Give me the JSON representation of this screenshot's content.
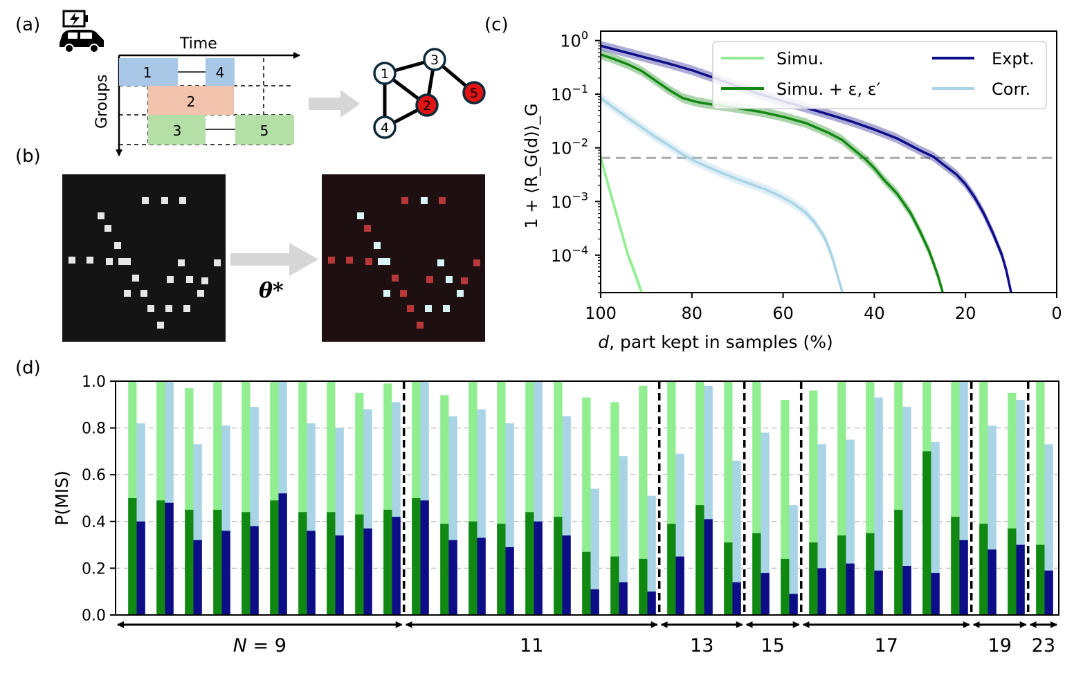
{
  "panel_labels": {
    "a": "(a)",
    "b": "(b)",
    "c": "(c)",
    "d": "(d)"
  },
  "panel_a": {
    "time_label": "Time",
    "groups_label": "Groups",
    "blocks": [
      {
        "label": "1",
        "color": "#a9c8e8"
      },
      {
        "label": "4",
        "color": "#a9c8e8"
      },
      {
        "label": "2",
        "color": "#f2c4ad"
      },
      {
        "label": "3",
        "color": "#b4dfa6"
      },
      {
        "label": "5",
        "color": "#b4dfa6"
      }
    ],
    "graph_nodes": [
      {
        "label": "1",
        "color": "#ffffff"
      },
      {
        "label": "2",
        "color": "#e01414"
      },
      {
        "label": "3",
        "color": "#ffffff"
      },
      {
        "label": "4",
        "color": "#ffffff"
      },
      {
        "label": "5",
        "color": "#e01414"
      }
    ]
  },
  "panel_b": {
    "arrow_label": "θ*"
  },
  "chart_data": [
    {
      "panel": "c",
      "type": "line",
      "yscale": "log",
      "xlabel_var": "d",
      "xlabel": ", part kept in samples (%)",
      "ylabel": "1 + ⟨R_G(d)⟩_G",
      "xlim": [
        100,
        0
      ],
      "ylim": [
        2e-05,
        1.5
      ],
      "xticks": [
        "100",
        "80",
        "60",
        "40",
        "20",
        "0"
      ],
      "yticks": [
        {
          "base": "10",
          "exp": "0",
          "value": 1
        },
        {
          "base": "10",
          "exp": "−1",
          "value": 0.1
        },
        {
          "base": "10",
          "exp": "−2",
          "value": 0.01
        },
        {
          "base": "10",
          "exp": "−3",
          "value": 0.001
        },
        {
          "base": "10",
          "exp": "−4",
          "value": 0.0001
        }
      ],
      "threshold": 0.0065,
      "series": [
        {
          "name": "Simu.",
          "color": "#90ee90",
          "x": [
            100,
            99,
            98,
            97,
            96,
            95,
            94,
            93,
            92,
            91
          ],
          "y": [
            0.007,
            0.0032,
            0.0016,
            0.0008,
            0.0004,
            0.0002,
            0.0001,
            6e-05,
            3.5e-05,
            2e-05
          ]
        },
        {
          "name": "Simu. + ε, ε′",
          "color": "#118811",
          "x": [
            100,
            97,
            94,
            91,
            88,
            85,
            82,
            79,
            76,
            73,
            70,
            65,
            60,
            55,
            50,
            47,
            45,
            42,
            40,
            38,
            35,
            32,
            30,
            28,
            27,
            26,
            25
          ],
          "y": [
            0.55,
            0.45,
            0.36,
            0.27,
            0.18,
            0.12,
            0.085,
            0.072,
            0.065,
            0.06,
            0.055,
            0.047,
            0.038,
            0.029,
            0.019,
            0.014,
            0.01,
            0.0062,
            0.0042,
            0.0026,
            0.0014,
            0.0006,
            0.00028,
            0.00012,
            7e-05,
            4e-05,
            2e-05
          ]
        },
        {
          "name": "Expt.",
          "color": "#0d0d88",
          "x": [
            100,
            95,
            90,
            85,
            80,
            75,
            70,
            65,
            60,
            55,
            50,
            45,
            40,
            35,
            30,
            27,
            25,
            22,
            20,
            18,
            16,
            14,
            12,
            11,
            10
          ],
          "y": [
            0.8,
            0.62,
            0.48,
            0.37,
            0.28,
            0.2,
            0.14,
            0.1,
            0.074,
            0.056,
            0.042,
            0.031,
            0.022,
            0.015,
            0.009,
            0.0068,
            0.005,
            0.0032,
            0.0021,
            0.0012,
            0.0006,
            0.00026,
            0.0001,
            5e-05,
            2e-05
          ]
        },
        {
          "name": "Corr.",
          "color": "#a8d4e6",
          "x": [
            100,
            97,
            94,
            91,
            88,
            85,
            82,
            79,
            76,
            73,
            70,
            67,
            64,
            61,
            58,
            55,
            53,
            51,
            50,
            49,
            48,
            47
          ],
          "y": [
            0.085,
            0.055,
            0.036,
            0.024,
            0.016,
            0.011,
            0.0075,
            0.0055,
            0.0042,
            0.0033,
            0.0026,
            0.0021,
            0.0017,
            0.0013,
            0.00095,
            0.00062,
            0.0004,
            0.00022,
            0.00014,
            8e-05,
            4e-05,
            2e-05
          ]
        }
      ],
      "legend": {
        "placement": "top-right"
      }
    },
    {
      "panel": "d",
      "type": "bar",
      "ylabel": "P(MIS)",
      "ylim": [
        0,
        1
      ],
      "yticks": [
        "0.0",
        "0.2",
        "0.4",
        "0.6",
        "0.8",
        "1.0"
      ],
      "series_colors": {
        "simu": "#90ee90",
        "simu_eps": "#118811",
        "expt": "#0d0d88",
        "corr": "#a8d4e6"
      },
      "groups": [
        {
          "N": "N = 9",
          "bars": [
            {
              "simu": 1.0,
              "simu_eps": 0.5,
              "expt": 0.4,
              "corr": 0.82
            },
            {
              "simu": 1.0,
              "simu_eps": 0.49,
              "expt": 0.48,
              "corr": 1.0
            },
            {
              "simu": 0.97,
              "simu_eps": 0.45,
              "expt": 0.32,
              "corr": 0.73
            },
            {
              "simu": 1.0,
              "simu_eps": 0.45,
              "expt": 0.36,
              "corr": 0.81
            },
            {
              "simu": 1.0,
              "simu_eps": 0.44,
              "expt": 0.38,
              "corr": 0.89
            },
            {
              "simu": 1.0,
              "simu_eps": 0.49,
              "expt": 0.52,
              "corr": 1.0
            },
            {
              "simu": 1.0,
              "simu_eps": 0.44,
              "expt": 0.36,
              "corr": 0.82
            },
            {
              "simu": 1.0,
              "simu_eps": 0.44,
              "expt": 0.34,
              "corr": 0.8
            },
            {
              "simu": 0.95,
              "simu_eps": 0.43,
              "expt": 0.37,
              "corr": 0.88
            },
            {
              "simu": 0.99,
              "simu_eps": 0.45,
              "expt": 0.42,
              "corr": 0.91
            }
          ]
        },
        {
          "N": "11",
          "bars": [
            {
              "simu": 1.0,
              "simu_eps": 0.5,
              "expt": 0.49,
              "corr": 1.0
            },
            {
              "simu": 0.94,
              "simu_eps": 0.39,
              "expt": 0.32,
              "corr": 0.85
            },
            {
              "simu": 1.0,
              "simu_eps": 0.4,
              "expt": 0.33,
              "corr": 0.88
            },
            {
              "simu": 1.0,
              "simu_eps": 0.39,
              "expt": 0.29,
              "corr": 0.82
            },
            {
              "simu": 1.0,
              "simu_eps": 0.44,
              "expt": 0.4,
              "corr": 1.0
            },
            {
              "simu": 1.0,
              "simu_eps": 0.42,
              "expt": 0.34,
              "corr": 0.85
            },
            {
              "simu": 0.93,
              "simu_eps": 0.27,
              "expt": 0.11,
              "corr": 0.54
            },
            {
              "simu": 0.91,
              "simu_eps": 0.25,
              "expt": 0.14,
              "corr": 0.68
            },
            {
              "simu": 0.98,
              "simu_eps": 0.24,
              "expt": 0.1,
              "corr": 0.51
            }
          ]
        },
        {
          "N": "13",
          "bars": [
            {
              "simu": 1.0,
              "simu_eps": 0.39,
              "expt": 0.25,
              "corr": 0.69
            },
            {
              "simu": 1.0,
              "simu_eps": 0.47,
              "expt": 0.41,
              "corr": 0.98
            },
            {
              "simu": 1.0,
              "simu_eps": 0.31,
              "expt": 0.14,
              "corr": 0.66
            }
          ]
        },
        {
          "N": "15",
          "bars": [
            {
              "simu": 1.0,
              "simu_eps": 0.35,
              "expt": 0.18,
              "corr": 0.78
            },
            {
              "simu": 0.92,
              "simu_eps": 0.24,
              "expt": 0.09,
              "corr": 0.47
            }
          ]
        },
        {
          "N": "17",
          "bars": [
            {
              "simu": 0.96,
              "simu_eps": 0.31,
              "expt": 0.2,
              "corr": 0.73
            },
            {
              "simu": 1.0,
              "simu_eps": 0.34,
              "expt": 0.22,
              "corr": 0.75
            },
            {
              "simu": 1.0,
              "simu_eps": 0.35,
              "expt": 0.19,
              "corr": 0.93
            },
            {
              "simu": 1.0,
              "simu_eps": 0.45,
              "expt": 0.21,
              "corr": 0.89
            },
            {
              "simu": 1.0,
              "simu_eps": 0.7,
              "expt": 0.18,
              "corr": 0.74
            },
            {
              "simu": 1.0,
              "simu_eps": 0.42,
              "expt": 0.32,
              "corr": 1.0
            }
          ]
        },
        {
          "N": "19",
          "bars": [
            {
              "simu": 1.0,
              "simu_eps": 0.39,
              "expt": 0.28,
              "corr": 0.81
            },
            {
              "simu": 0.95,
              "simu_eps": 0.37,
              "expt": 0.3,
              "corr": 0.92
            }
          ]
        },
        {
          "N": "23",
          "bars": [
            {
              "simu": 1.0,
              "simu_eps": 0.3,
              "expt": 0.19,
              "corr": 0.73
            }
          ]
        }
      ]
    }
  ]
}
